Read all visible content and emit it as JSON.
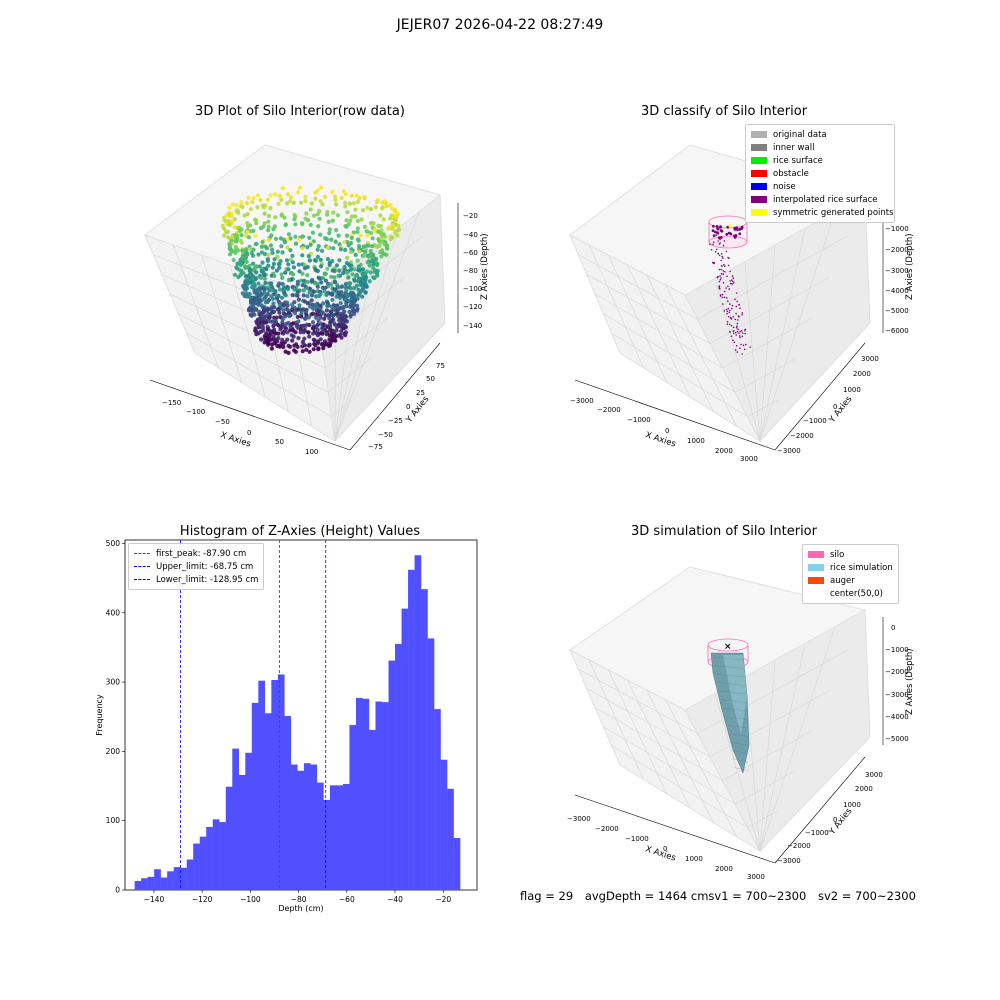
{
  "figure": {
    "suptitle": "JEJER07 2026-04-22 08:27:49"
  },
  "panels": {
    "raw": {
      "title": "3D Plot of Silo Interior(row data)",
      "xlabel": "X Axies",
      "ylabel": "Y Axies",
      "zlabel": "Z Axies (Depth)",
      "xticks": [
        "−150",
        "−100",
        "−50",
        "0",
        "50",
        "100"
      ],
      "yticks": [
        "−75",
        "−50",
        "−25",
        "0",
        "25",
        "50",
        "75"
      ],
      "zticks": [
        "−20",
        "−40",
        "−60",
        "−80",
        "−100",
        "−120",
        "−140"
      ]
    },
    "classify": {
      "title": "3D classify of Silo Interior",
      "xlabel": "X Axies",
      "ylabel": "Y Axies",
      "zlabel": "Z Axies (Depth)",
      "xticks": [
        "−3000",
        "−2000",
        "−1000",
        "0",
        "1000",
        "2000",
        "3000"
      ],
      "yticks": [
        "−3000",
        "−2000",
        "−1000",
        "0",
        "1000",
        "2000",
        "3000"
      ],
      "zticks": [
        "0",
        "−1000",
        "−2000",
        "−3000",
        "−4000",
        "−5000",
        "−6000"
      ],
      "legend": [
        {
          "label": "original data",
          "color": "#b0b0b0"
        },
        {
          "label": "inner wall",
          "color": "#808080"
        },
        {
          "label": "rice surface",
          "color": "#00ee00"
        },
        {
          "label": "obstacle",
          "color": "#ff0000"
        },
        {
          "label": "noise",
          "color": "#0000ee"
        },
        {
          "label": "interpolated rice surface",
          "color": "#800080"
        },
        {
          "label": "symmetric generated points",
          "color": "#ffff00"
        }
      ]
    },
    "histogram": {
      "title": "Histogram of Z-Axies (Height) Values",
      "legend": [
        {
          "label": "first_peak: -87.90 cm",
          "color": "#ff0000"
        },
        {
          "label": "Upper_limit: -68.75 cm",
          "color": "#0000ff"
        },
        {
          "label": "Lower_limit: -128.95 cm",
          "color": "#0000ff"
        }
      ]
    },
    "simulation": {
      "title": "3D simulation of Silo Interior",
      "xlabel": "X Axies",
      "ylabel": "Y Axies",
      "zlabel": "Z Axies (Depth)",
      "xticks": [
        "−3000",
        "−2000",
        "−1000",
        "0",
        "1000",
        "2000",
        "3000"
      ],
      "yticks": [
        "−3000",
        "−2000",
        "−1000",
        "0",
        "1000",
        "2000",
        "3000"
      ],
      "zticks": [
        "0",
        "−1000",
        "−2000",
        "−3000",
        "−4000",
        "−5000"
      ],
      "legend": [
        {
          "label": "silo",
          "color": "#ff69b4"
        },
        {
          "label": "rice simulation",
          "color": "#87ceeb"
        },
        {
          "label": "auger",
          "color": "#ff4500"
        },
        {
          "label": "center(50,0)",
          "color": ""
        }
      ]
    }
  },
  "status": {
    "flag": "flag = 29",
    "avg_depth": "avgDepth = 1464 cmsv1 = 700~2300",
    "sv2": "sv2 = 700~2300"
  },
  "chart_data": {
    "type": "bar",
    "title": "Histogram of Z-Axies (Height) Values",
    "xlabel": "Depth (cm)",
    "ylabel": "Frequency",
    "xlim": [
      -152,
      -6
    ],
    "ylim": [
      0,
      505
    ],
    "xticks": [
      -140,
      -120,
      -100,
      -80,
      -60,
      -40,
      -20
    ],
    "yticks": [
      0,
      100,
      200,
      300,
      400,
      500
    ],
    "bar_color": "#5050ff",
    "bin_start": -148,
    "bin_width": 2.7,
    "counts": [
      13,
      17,
      19,
      30,
      18,
      27,
      33,
      32,
      44,
      67,
      77,
      91,
      102,
      98,
      149,
      204,
      166,
      198,
      270,
      302,
      255,
      303,
      311,
      251,
      181,
      172,
      183,
      181,
      155,
      130,
      151,
      151,
      153,
      238,
      277,
      276,
      231,
      272,
      271,
      331,
      355,
      406,
      462,
      483,
      434,
      363,
      261,
      188,
      146,
      75
    ],
    "vlines": [
      {
        "name": "first_peak: -87.90 cm",
        "x": -87.9,
        "color": "#ff0000"
      },
      {
        "name": "Upper_limit: -68.75 cm",
        "x": -68.75,
        "color": "#0000ff"
      },
      {
        "name": "Lower_limit: -128.95 cm",
        "x": -128.95,
        "color": "#0000ff"
      }
    ],
    "legend_position": "upper-left"
  }
}
